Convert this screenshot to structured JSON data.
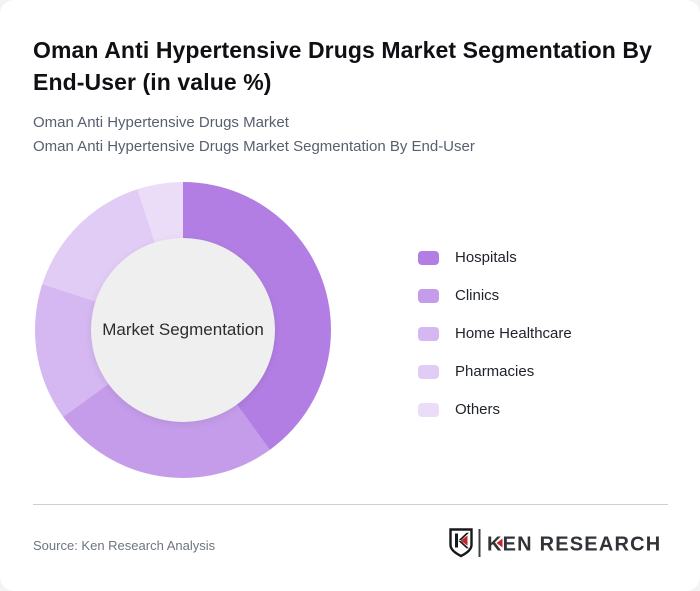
{
  "header": {
    "title": "Oman Anti Hypertensive Drugs Market Segmentation By End-User (in value %)",
    "subtitle_line1": "Oman Anti Hypertensive Drugs Market",
    "subtitle_line2": "Oman Anti Hypertensive Drugs Market Segmentation By End-User"
  },
  "chart_data": {
    "type": "pie",
    "variant": "donut",
    "title": "Oman Anti Hypertensive Drugs Market Segmentation By End-User (in value %)",
    "unit": "value %",
    "start_angle_deg": 0,
    "direction": "clockwise",
    "legend_position": "right",
    "center_label": "Market Segmentation",
    "center_fill": "#efefef",
    "segments": [
      {
        "label": "Hospitals",
        "value": 40,
        "color": "#B27EE3"
      },
      {
        "label": "Clinics",
        "value": 25,
        "color": "#C59CEA"
      },
      {
        "label": "Home Healthcare",
        "value": 15,
        "color": "#D5B7F1"
      },
      {
        "label": "Pharmacies",
        "value": 15,
        "color": "#E1CCF5"
      },
      {
        "label": "Others",
        "value": 5,
        "color": "#EBDDF8"
      }
    ]
  },
  "footer": {
    "source": "Source: Ken Research Analysis",
    "brand": "KEN RESEARCH",
    "brand_colors": {
      "dark": "#303438",
      "red": "#C1272D"
    }
  }
}
